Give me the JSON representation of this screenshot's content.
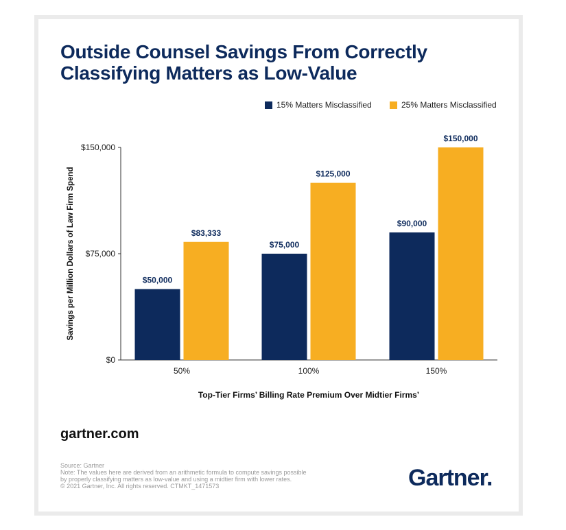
{
  "title_line1": "Outside Counsel Savings From Correctly",
  "title_line2": "Classifying Matters as Low-Value",
  "site": "gartner.com",
  "notes": [
    "Source: Gartner",
    "Note: The values here are derived from an arithmetic formula to compute savings possible",
    "by properly classifying matters as low-value and using a midtier firm with lower rates.",
    "© 2021 Gartner, Inc. All rights reserved. CTMKT_1471573"
  ],
  "logo": "Gartner.",
  "chart_data": {
    "type": "bar",
    "xlabel": "Top-Tier Firms’ Billing Rate Premium Over Midtier Firms’",
    "ylabel": "Savings per Million Dollars of Law Firm Spend",
    "categories": [
      "50%",
      "100%",
      "150%"
    ],
    "ylim": [
      0,
      150000
    ],
    "yticks": [
      0,
      75000,
      150000
    ],
    "ytick_labels": [
      "$0",
      "$75,000",
      "$150,000"
    ],
    "legend_position": "top-right",
    "grid": false,
    "series": [
      {
        "name": "15% Matters Misclassified",
        "color": "#0d2a5c",
        "values": [
          50000,
          75000,
          90000
        ],
        "labels": [
          "$50,000",
          "$75,000",
          "$90,000"
        ]
      },
      {
        "name": "25% Matters Misclassified",
        "color": "#f7ae22",
        "values": [
          83333,
          125000,
          150000
        ],
        "labels": [
          "$83,333",
          "$125,000",
          "$150,000"
        ]
      }
    ]
  }
}
